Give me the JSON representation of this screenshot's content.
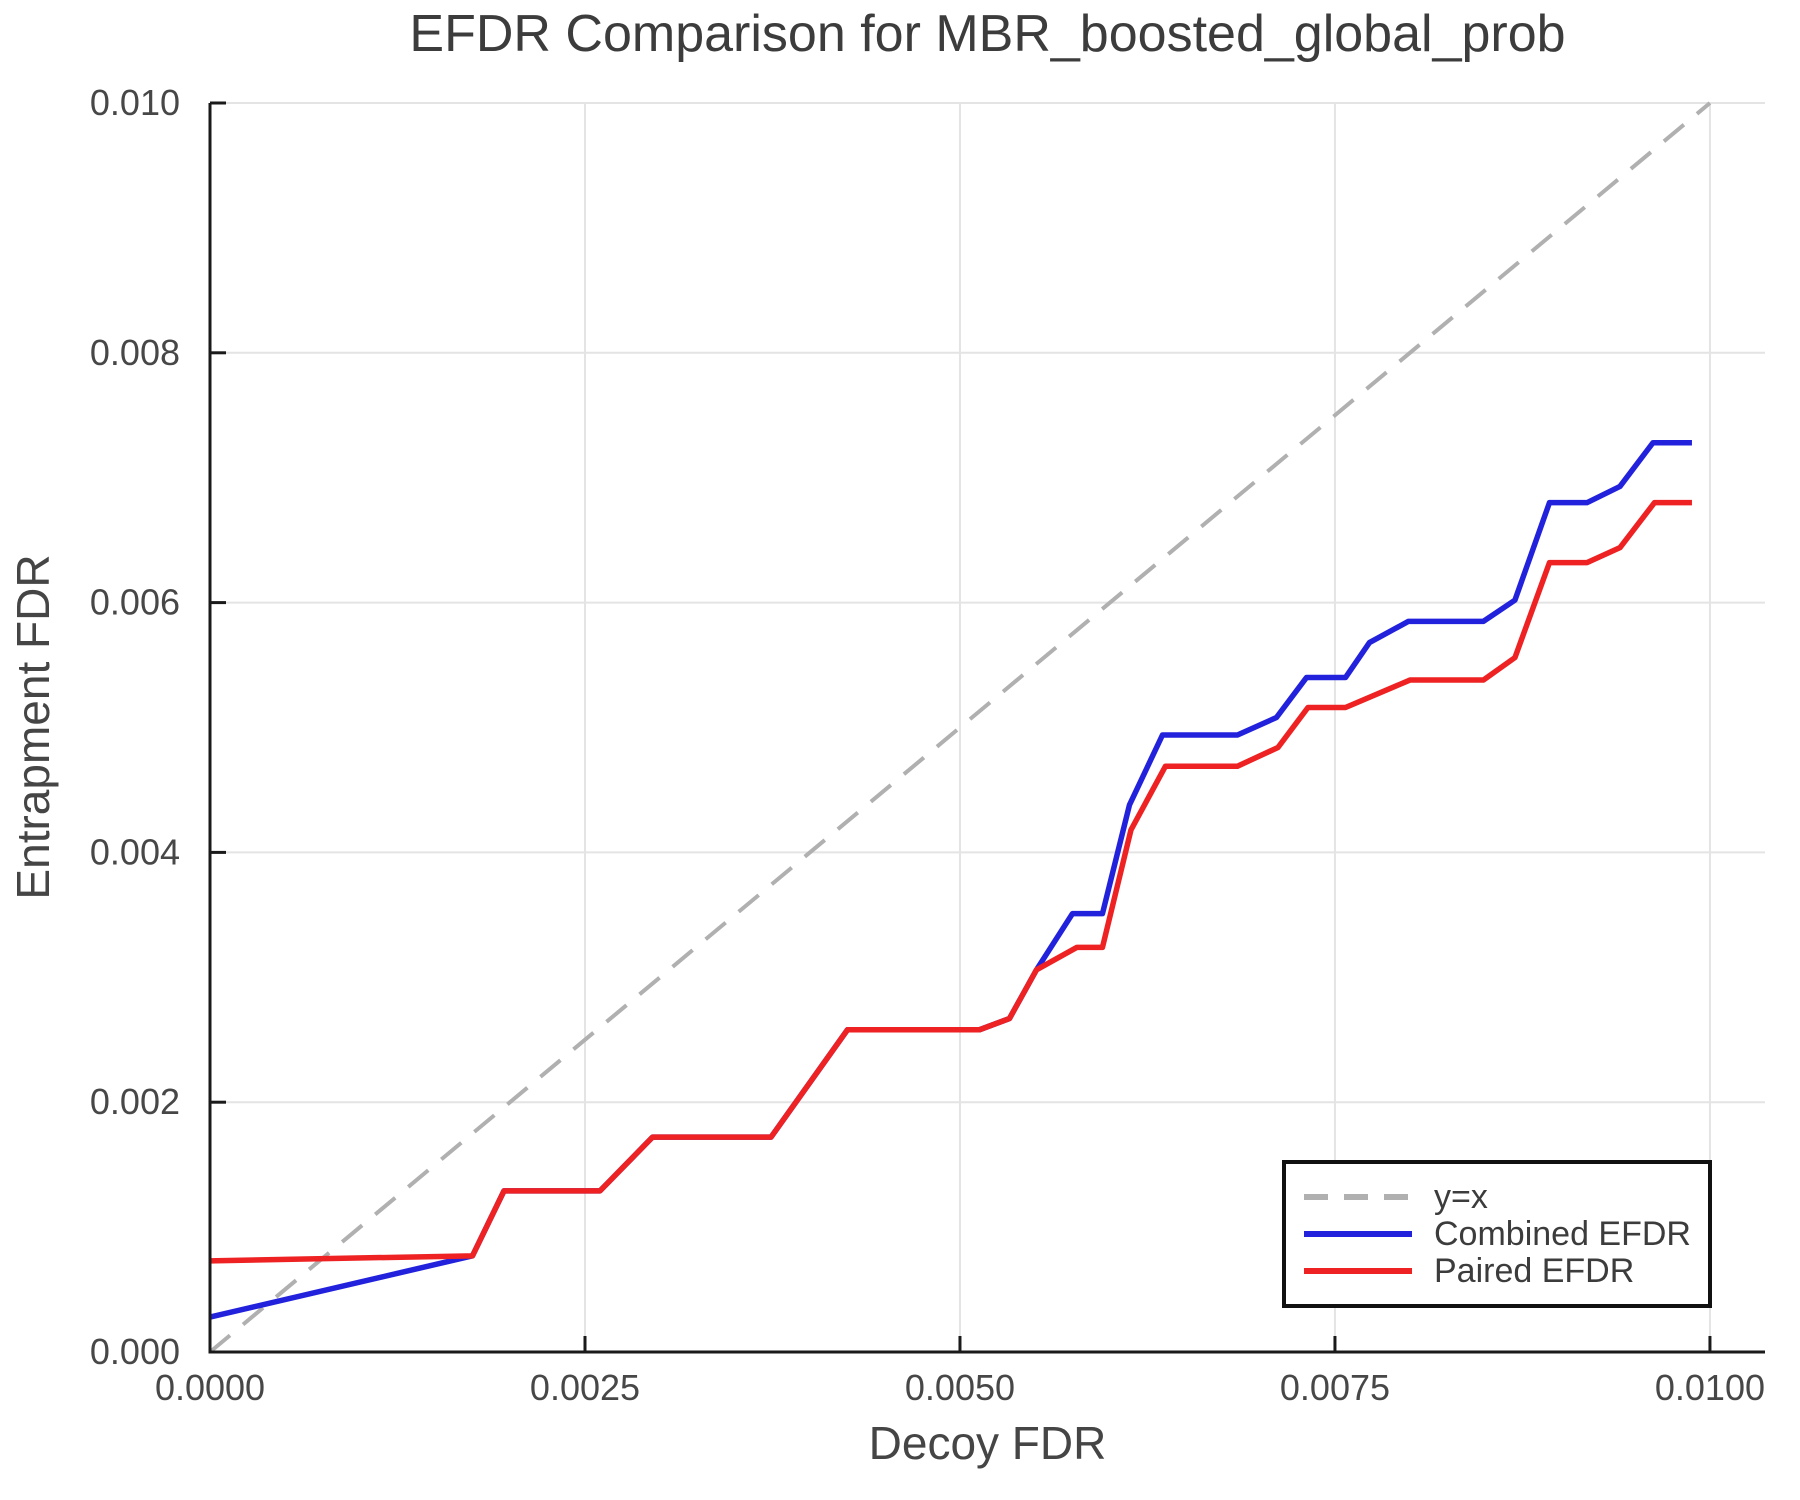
{
  "chart_data": {
    "type": "line",
    "title": "EFDR Comparison for MBR_boosted_global_prob",
    "xlabel": "Decoy FDR",
    "ylabel": "Entrapment FDR",
    "xlim": [
      0,
      0.010367
    ],
    "ylim": [
      0,
      0.01
    ],
    "grid": true,
    "grid_color": "#e4e4e4",
    "spine_color": "#1a1a1a",
    "x_ticks": {
      "values": [
        0,
        0.0025,
        0.005,
        0.0075,
        0.01
      ],
      "labels": [
        "0.0000",
        "0.0025",
        "0.0050",
        "0.0075",
        "0.0100"
      ]
    },
    "y_ticks": {
      "values": [
        0,
        0.002,
        0.004,
        0.006,
        0.008,
        0.01
      ],
      "labels": [
        "0.000",
        "0.002",
        "0.004",
        "0.006",
        "0.008",
        "0.010"
      ]
    },
    "legend": {
      "position": "lower right",
      "entries": [
        {
          "label": "y=x",
          "color": "#b0b0b0",
          "dash": true
        },
        {
          "label": "Combined EFDR",
          "color": "#2222dd",
          "dash": false
        },
        {
          "label": "Paired EFDR",
          "color": "#ee2222",
          "dash": false
        }
      ]
    },
    "series": [
      {
        "name": "y=x",
        "color": "#b0b0b0",
        "dash": true,
        "width": 4,
        "points": [
          [
            0,
            0
          ],
          [
            0.01,
            0.01
          ]
        ]
      },
      {
        "name": "Combined EFDR",
        "color": "#2222dd",
        "dash": false,
        "width": 5.5,
        "points": [
          [
            0.0,
            0.00028
          ],
          [
            0.00175,
            0.00077
          ],
          [
            0.00196,
            0.00129
          ],
          [
            0.0026,
            0.00129
          ],
          [
            0.00295,
            0.00172
          ],
          [
            0.00374,
            0.00172
          ],
          [
            0.00425,
            0.00258
          ],
          [
            0.00513,
            0.00258
          ],
          [
            0.00533,
            0.00267
          ],
          [
            0.00551,
            0.00306
          ],
          [
            0.00575,
            0.00351
          ],
          [
            0.00595,
            0.00351
          ],
          [
            0.00613,
            0.00438
          ],
          [
            0.00635,
            0.00494
          ],
          [
            0.00685,
            0.00494
          ],
          [
            0.00711,
            0.00508
          ],
          [
            0.00731,
            0.0054
          ],
          [
            0.00757,
            0.0054
          ],
          [
            0.00773,
            0.00568
          ],
          [
            0.00799,
            0.00585
          ],
          [
            0.00849,
            0.00585
          ],
          [
            0.0087,
            0.00602
          ],
          [
            0.00893,
            0.0068
          ],
          [
            0.00918,
            0.0068
          ],
          [
            0.0094,
            0.00693
          ],
          [
            0.00962,
            0.00728
          ],
          [
            0.00988,
            0.00728
          ]
        ]
      },
      {
        "name": "Paired EFDR",
        "color": "#ee2222",
        "dash": false,
        "width": 5.5,
        "points": [
          [
            0.0,
            0.00073
          ],
          [
            0.00175,
            0.00077
          ],
          [
            0.00196,
            0.00129
          ],
          [
            0.0026,
            0.00129
          ],
          [
            0.00295,
            0.00172
          ],
          [
            0.00374,
            0.00172
          ],
          [
            0.00425,
            0.00258
          ],
          [
            0.00513,
            0.00258
          ],
          [
            0.00533,
            0.00267
          ],
          [
            0.00551,
            0.00306
          ],
          [
            0.00578,
            0.00324
          ],
          [
            0.00595,
            0.00324
          ],
          [
            0.00614,
            0.00418
          ],
          [
            0.00637,
            0.00469
          ],
          [
            0.00685,
            0.00469
          ],
          [
            0.00712,
            0.00484
          ],
          [
            0.00732,
            0.00516
          ],
          [
            0.00757,
            0.00516
          ],
          [
            0.008,
            0.00538
          ],
          [
            0.00849,
            0.00538
          ],
          [
            0.0087,
            0.00556
          ],
          [
            0.00893,
            0.00632
          ],
          [
            0.00918,
            0.00632
          ],
          [
            0.0094,
            0.00644
          ],
          [
            0.00963,
            0.0068
          ],
          [
            0.00988,
            0.0068
          ]
        ]
      }
    ]
  }
}
